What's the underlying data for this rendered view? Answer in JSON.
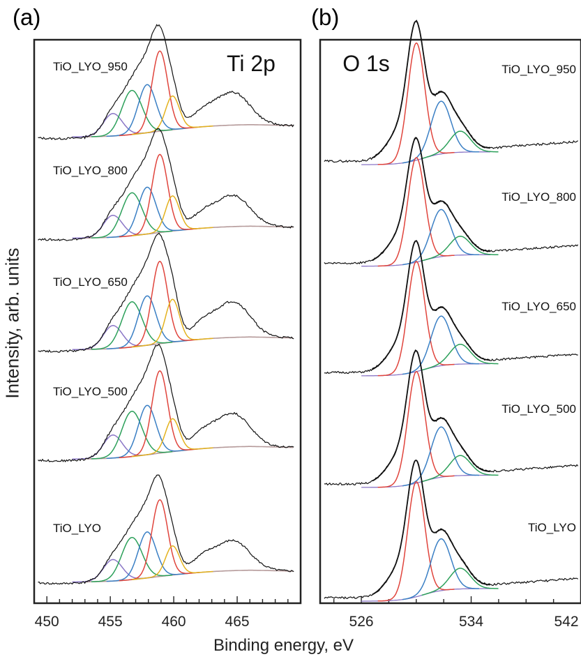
{
  "figure": {
    "xlabel": "Binding energy, eV",
    "ylabel": "Intensity, arb. units"
  },
  "colors": {
    "spectrum": "#111111",
    "envelope": "#111111",
    "background": "#b59a9a",
    "peak_red": "#e0443c",
    "peak_blue": "#3a7fc4",
    "peak_green": "#2ca05a",
    "peak_purple": "#8a76c6",
    "peak_yellow": "#e3b21e",
    "peak_teal": "#4bb8a8"
  },
  "chart_data": [
    {
      "type": "line",
      "panel_label": "(a)",
      "region_label": "Ti 2p",
      "xlim": [
        449,
        470
      ],
      "x_ticks": [
        450,
        455,
        460,
        465
      ],
      "y_ticks": "none",
      "grid": false,
      "series": [
        {
          "name": "TiO_LYO_950"
        },
        {
          "name": "TiO_LYO_800"
        },
        {
          "name": "TiO_LYO_650"
        },
        {
          "name": "TiO_LYO_500"
        },
        {
          "name": "TiO_LYO"
        }
      ],
      "main_peak_ev": 458.9,
      "satellite_peak_ev": 464.7,
      "fit_components_ev": [
        455.2,
        456.7,
        457.9,
        458.9,
        459.9
      ]
    },
    {
      "type": "line",
      "panel_label": "(b)",
      "region_label": "O 1s",
      "xlim": [
        523,
        542
      ],
      "x_ticks": [
        526,
        534,
        542
      ],
      "y_ticks": "none",
      "grid": false,
      "series": [
        {
          "name": "TiO_LYO_950"
        },
        {
          "name": "TiO_LYO_800"
        },
        {
          "name": "TiO_LYO_650"
        },
        {
          "name": "TiO_LYO_500"
        },
        {
          "name": "TiO_LYO"
        }
      ],
      "main_peak_ev": 530.0,
      "fit_components_ev": [
        530.0,
        531.8,
        533.2
      ]
    }
  ]
}
